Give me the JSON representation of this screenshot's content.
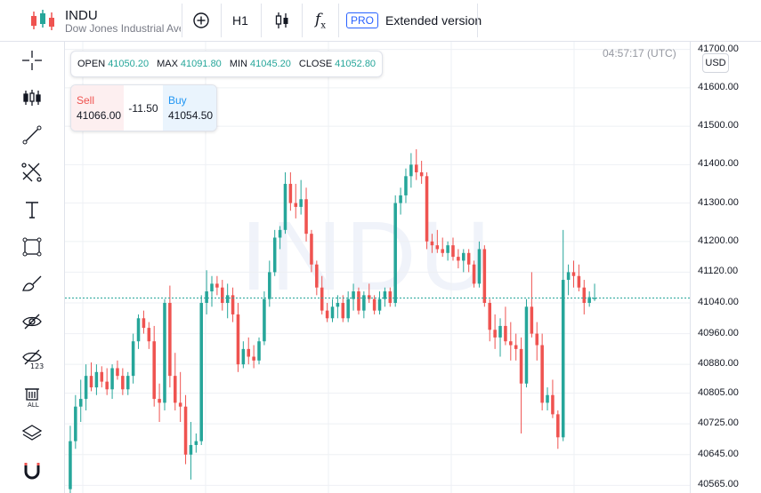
{
  "symbol": {
    "ticker": "INDU",
    "name": "Dow Jones Industrial Average"
  },
  "toolbar": {
    "interval": "H1",
    "pro_badge": "PRO",
    "extended_label": "Extended version"
  },
  "ohlc": {
    "open_label": "OPEN",
    "open": "41050.20",
    "max_label": "MAX",
    "max": "41091.80",
    "min_label": "MIN",
    "min": "41045.20",
    "close_label": "CLOSE",
    "close": "41052.80"
  },
  "trade": {
    "sell_label": "Sell",
    "sell_price": "41066.00",
    "spread": "-11.50",
    "buy_label": "Buy",
    "buy_price": "41054.50"
  },
  "clock": "04:57:17 (UTC)",
  "currency": "USD",
  "watermark": "INDU",
  "colors": {
    "up": "#26a69a",
    "down": "#ef5350",
    "price_line": "#26a69a"
  },
  "sidebar_icons": [
    "crosshair-icon",
    "candles-icon",
    "trend-line-icon",
    "fib-icon",
    "text-icon",
    "rectangle-icon",
    "brush-icon",
    "hide-drawings-icon",
    "hide-indicators-icon",
    "delete-all-icon",
    "layers-icon",
    "magnet-icon"
  ],
  "chart_data": {
    "type": "candlestick",
    "y_ticks": [
      "41700.00",
      "41600.00",
      "41500.00",
      "41400.00",
      "41300.00",
      "41200.00",
      "41120.00",
      "41040.00",
      "40960.00",
      "40880.00",
      "40805.00",
      "40725.00",
      "40645.00",
      "40565.00"
    ],
    "ylim": [
      40545,
      41720
    ],
    "current_price": 41052.8,
    "candles": [
      {
        "o": 40555,
        "h": 40720,
        "l": 40540,
        "c": 40680
      },
      {
        "o": 40680,
        "h": 40800,
        "l": 40660,
        "c": 40770
      },
      {
        "o": 40770,
        "h": 40840,
        "l": 40730,
        "c": 40790
      },
      {
        "o": 40790,
        "h": 40880,
        "l": 40760,
        "c": 40850
      },
      {
        "o": 40850,
        "h": 40885,
        "l": 40810,
        "c": 40820
      },
      {
        "o": 40820,
        "h": 40880,
        "l": 40800,
        "c": 40860
      },
      {
        "o": 40860,
        "h": 40875,
        "l": 40820,
        "c": 40835
      },
      {
        "o": 40835,
        "h": 40870,
        "l": 40800,
        "c": 40815
      },
      {
        "o": 40815,
        "h": 40880,
        "l": 40790,
        "c": 40870
      },
      {
        "o": 40870,
        "h": 40890,
        "l": 40840,
        "c": 40850
      },
      {
        "o": 40850,
        "h": 40870,
        "l": 40800,
        "c": 40815
      },
      {
        "o": 40815,
        "h": 40860,
        "l": 40800,
        "c": 40850
      },
      {
        "o": 40850,
        "h": 40960,
        "l": 40830,
        "c": 40940
      },
      {
        "o": 40940,
        "h": 41010,
        "l": 40920,
        "c": 41000
      },
      {
        "o": 41000,
        "h": 41020,
        "l": 40960,
        "c": 40975
      },
      {
        "o": 40975,
        "h": 40990,
        "l": 40920,
        "c": 40940
      },
      {
        "o": 40940,
        "h": 40980,
        "l": 40770,
        "c": 40790
      },
      {
        "o": 40790,
        "h": 40830,
        "l": 40730,
        "c": 40780
      },
      {
        "o": 40780,
        "h": 41050,
        "l": 40760,
        "c": 41040
      },
      {
        "o": 41040,
        "h": 41085,
        "l": 40820,
        "c": 40850
      },
      {
        "o": 40850,
        "h": 40910,
        "l": 40760,
        "c": 40780
      },
      {
        "o": 40780,
        "h": 40860,
        "l": 40730,
        "c": 40770
      },
      {
        "o": 40770,
        "h": 40800,
        "l": 40620,
        "c": 40645
      },
      {
        "o": 40645,
        "h": 40730,
        "l": 40580,
        "c": 40670
      },
      {
        "o": 40670,
        "h": 40700,
        "l": 40650,
        "c": 40680
      },
      {
        "o": 40680,
        "h": 41060,
        "l": 40670,
        "c": 41040
      },
      {
        "o": 41040,
        "h": 41125,
        "l": 41010,
        "c": 41070
      },
      {
        "o": 41070,
        "h": 41110,
        "l": 41030,
        "c": 41090
      },
      {
        "o": 41090,
        "h": 41110,
        "l": 41060,
        "c": 41080
      },
      {
        "o": 41080,
        "h": 41100,
        "l": 41020,
        "c": 41040
      },
      {
        "o": 41040,
        "h": 41090,
        "l": 41000,
        "c": 41060
      },
      {
        "o": 41060,
        "h": 41080,
        "l": 40990,
        "c": 41010
      },
      {
        "o": 41010,
        "h": 41040,
        "l": 40860,
        "c": 40880
      },
      {
        "o": 40880,
        "h": 40940,
        "l": 40870,
        "c": 40920
      },
      {
        "o": 40920,
        "h": 40950,
        "l": 40880,
        "c": 40900
      },
      {
        "o": 40900,
        "h": 40930,
        "l": 40870,
        "c": 40890
      },
      {
        "o": 40890,
        "h": 40950,
        "l": 40880,
        "c": 40940
      },
      {
        "o": 40940,
        "h": 41070,
        "l": 40930,
        "c": 41050
      },
      {
        "o": 41050,
        "h": 41150,
        "l": 41030,
        "c": 41120
      },
      {
        "o": 41120,
        "h": 41230,
        "l": 41110,
        "c": 41210
      },
      {
        "o": 41210,
        "h": 41240,
        "l": 41180,
        "c": 41230
      },
      {
        "o": 41230,
        "h": 41380,
        "l": 41220,
        "c": 41350
      },
      {
        "o": 41350,
        "h": 41380,
        "l": 41280,
        "c": 41300
      },
      {
        "o": 41300,
        "h": 41350,
        "l": 41260,
        "c": 41290
      },
      {
        "o": 41290,
        "h": 41360,
        "l": 41270,
        "c": 41310
      },
      {
        "o": 41310,
        "h": 41340,
        "l": 41200,
        "c": 41220
      },
      {
        "o": 41220,
        "h": 41230,
        "l": 41120,
        "c": 41140
      },
      {
        "o": 41140,
        "h": 41150,
        "l": 41060,
        "c": 41080
      },
      {
        "o": 41080,
        "h": 41110,
        "l": 41010,
        "c": 41020
      },
      {
        "o": 41020,
        "h": 41040,
        "l": 40990,
        "c": 41000
      },
      {
        "o": 41000,
        "h": 41050,
        "l": 40990,
        "c": 41030
      },
      {
        "o": 41030,
        "h": 41060,
        "l": 41000,
        "c": 41040
      },
      {
        "o": 41040,
        "h": 41060,
        "l": 40990,
        "c": 41000
      },
      {
        "o": 41000,
        "h": 41070,
        "l": 40990,
        "c": 41050
      },
      {
        "o": 41050,
        "h": 41090,
        "l": 41020,
        "c": 41070
      },
      {
        "o": 41070,
        "h": 41080,
        "l": 41010,
        "c": 41020
      },
      {
        "o": 41020,
        "h": 41070,
        "l": 41000,
        "c": 41060
      },
      {
        "o": 41060,
        "h": 41090,
        "l": 41040,
        "c": 41050
      },
      {
        "o": 41050,
        "h": 41060,
        "l": 41010,
        "c": 41020
      },
      {
        "o": 41020,
        "h": 41070,
        "l": 41010,
        "c": 41050
      },
      {
        "o": 41050,
        "h": 41080,
        "l": 41030,
        "c": 41070
      },
      {
        "o": 41070,
        "h": 41080,
        "l": 41030,
        "c": 41040
      },
      {
        "o": 41040,
        "h": 41320,
        "l": 41030,
        "c": 41300
      },
      {
        "o": 41300,
        "h": 41340,
        "l": 41270,
        "c": 41320
      },
      {
        "o": 41320,
        "h": 41390,
        "l": 41300,
        "c": 41370
      },
      {
        "o": 41370,
        "h": 41430,
        "l": 41340,
        "c": 41400
      },
      {
        "o": 41400,
        "h": 41440,
        "l": 41360,
        "c": 41380
      },
      {
        "o": 41380,
        "h": 41410,
        "l": 41350,
        "c": 41370
      },
      {
        "o": 41370,
        "h": 41380,
        "l": 41180,
        "c": 41200
      },
      {
        "o": 41200,
        "h": 41220,
        "l": 41170,
        "c": 41190
      },
      {
        "o": 41190,
        "h": 41230,
        "l": 41170,
        "c": 41180
      },
      {
        "o": 41180,
        "h": 41210,
        "l": 41160,
        "c": 41170
      },
      {
        "o": 41170,
        "h": 41200,
        "l": 41150,
        "c": 41190
      },
      {
        "o": 41190,
        "h": 41210,
        "l": 41150,
        "c": 41160
      },
      {
        "o": 41160,
        "h": 41180,
        "l": 41130,
        "c": 41150
      },
      {
        "o": 41150,
        "h": 41180,
        "l": 41120,
        "c": 41170
      },
      {
        "o": 41170,
        "h": 41180,
        "l": 41120,
        "c": 41140
      },
      {
        "o": 41140,
        "h": 41150,
        "l": 41080,
        "c": 41090
      },
      {
        "o": 41090,
        "h": 41200,
        "l": 41080,
        "c": 41180
      },
      {
        "o": 41180,
        "h": 41190,
        "l": 41030,
        "c": 41040
      },
      {
        "o": 41040,
        "h": 41050,
        "l": 40940,
        "c": 40970
      },
      {
        "o": 40970,
        "h": 41010,
        "l": 40920,
        "c": 40950
      },
      {
        "o": 40950,
        "h": 41000,
        "l": 40900,
        "c": 40980
      },
      {
        "o": 40980,
        "h": 41030,
        "l": 40930,
        "c": 40940
      },
      {
        "o": 40940,
        "h": 40990,
        "l": 40890,
        "c": 40930
      },
      {
        "o": 40930,
        "h": 40960,
        "l": 40890,
        "c": 40920
      },
      {
        "o": 40920,
        "h": 40950,
        "l": 40700,
        "c": 40830
      },
      {
        "o": 40830,
        "h": 41050,
        "l": 40820,
        "c": 41030
      },
      {
        "o": 41030,
        "h": 41120,
        "l": 40950,
        "c": 40960
      },
      {
        "o": 40960,
        "h": 40990,
        "l": 40890,
        "c": 40930
      },
      {
        "o": 40930,
        "h": 40960,
        "l": 40760,
        "c": 40780
      },
      {
        "o": 40780,
        "h": 40820,
        "l": 40760,
        "c": 40800
      },
      {
        "o": 40800,
        "h": 40840,
        "l": 40740,
        "c": 40750
      },
      {
        "o": 40750,
        "h": 40760,
        "l": 40660,
        "c": 40690
      },
      {
        "o": 40690,
        "h": 41230,
        "l": 40680,
        "c": 41100
      },
      {
        "o": 41100,
        "h": 41140,
        "l": 41060,
        "c": 41120
      },
      {
        "o": 41120,
        "h": 41150,
        "l": 41080,
        "c": 41110
      },
      {
        "o": 41110,
        "h": 41140,
        "l": 41070,
        "c": 41080
      },
      {
        "o": 41080,
        "h": 41100,
        "l": 41010,
        "c": 41040
      },
      {
        "o": 41040,
        "h": 41070,
        "l": 41030,
        "c": 41055
      },
      {
        "o": 41050,
        "h": 41090,
        "l": 41045,
        "c": 41053
      }
    ]
  }
}
